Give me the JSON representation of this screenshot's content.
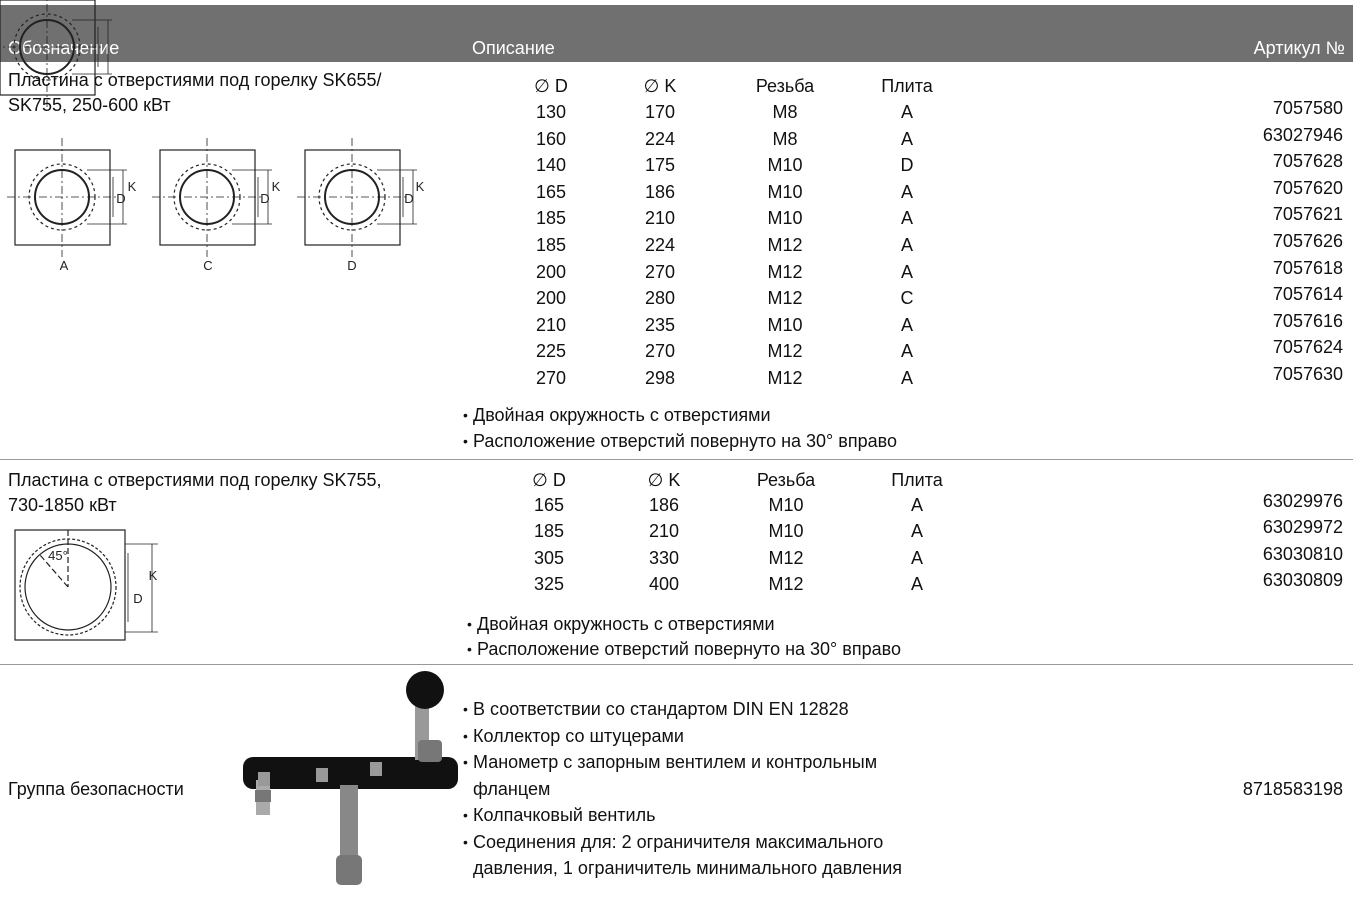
{
  "header": {
    "designation": "Обозначение",
    "description": "Описание",
    "article": "Артикул №"
  },
  "rows": [
    {
      "designation": [
        "Пластина с отверстиями под горелку SK655/",
        "SK755, 250-600 кВт"
      ],
      "figures": [
        "A",
        "C",
        "D"
      ],
      "figure_dims": [
        "K",
        "D"
      ],
      "columns": [
        "∅ D",
        "∅ K",
        "Резьба",
        "Плита"
      ],
      "items": [
        [
          130,
          170,
          "M8",
          "A",
          7057580
        ],
        [
          160,
          224,
          "M8",
          "A",
          63027946
        ],
        [
          140,
          175,
          "M10",
          "D",
          7057628
        ],
        [
          165,
          186,
          "M10",
          "A",
          7057620
        ],
        [
          185,
          210,
          "M10",
          "A",
          7057621
        ],
        [
          185,
          224,
          "M12",
          "A",
          7057626
        ],
        [
          200,
          270,
          "M12",
          "A",
          7057618
        ],
        [
          200,
          280,
          "M12",
          "C",
          7057614
        ],
        [
          210,
          235,
          "M10",
          "A",
          7057616
        ],
        [
          225,
          270,
          "M12",
          "A",
          7057624
        ],
        [
          270,
          298,
          "M12",
          "A",
          7057630
        ]
      ],
      "notes": [
        [
          "Двойная окружность с отверстиями"
        ],
        [
          "Расположение отверстий повернуто на 30° вправо"
        ]
      ]
    },
    {
      "designation": [
        "Пластина с отверстиями под горелку SK755,",
        "730-1850 кВт"
      ],
      "figure_angle": "45°",
      "figure_dims": [
        "K",
        "D"
      ],
      "columns": [
        "∅ D",
        "∅ K",
        "Резьба",
        "Плита"
      ],
      "items": [
        [
          165,
          186,
          "M10",
          "A",
          63029976
        ],
        [
          185,
          210,
          "M10",
          "A",
          63029972
        ],
        [
          305,
          330,
          "M12",
          "A",
          63030810
        ],
        [
          325,
          400,
          "M12",
          "A",
          63030809
        ]
      ],
      "notes": [
        [
          "Двойная окружность с отверстиями"
        ],
        [
          "Расположение отверстий повернуто на 30° вправо"
        ]
      ]
    },
    {
      "designation": [
        "Группа безопасности"
      ],
      "article": 8718583198,
      "notes": [
        [
          "В соответствии со стандартом DIN EN 12828"
        ],
        [
          "Коллектор со штуцерами"
        ],
        [
          "Манометр с запорным вентилем и контрольным",
          "фланцем"
        ],
        [
          "Колпачковый вентиль"
        ],
        [
          "Соединения для: 2 ограничителя максимального",
          "давления, 1 ограничитель минимального давления"
        ]
      ]
    }
  ]
}
